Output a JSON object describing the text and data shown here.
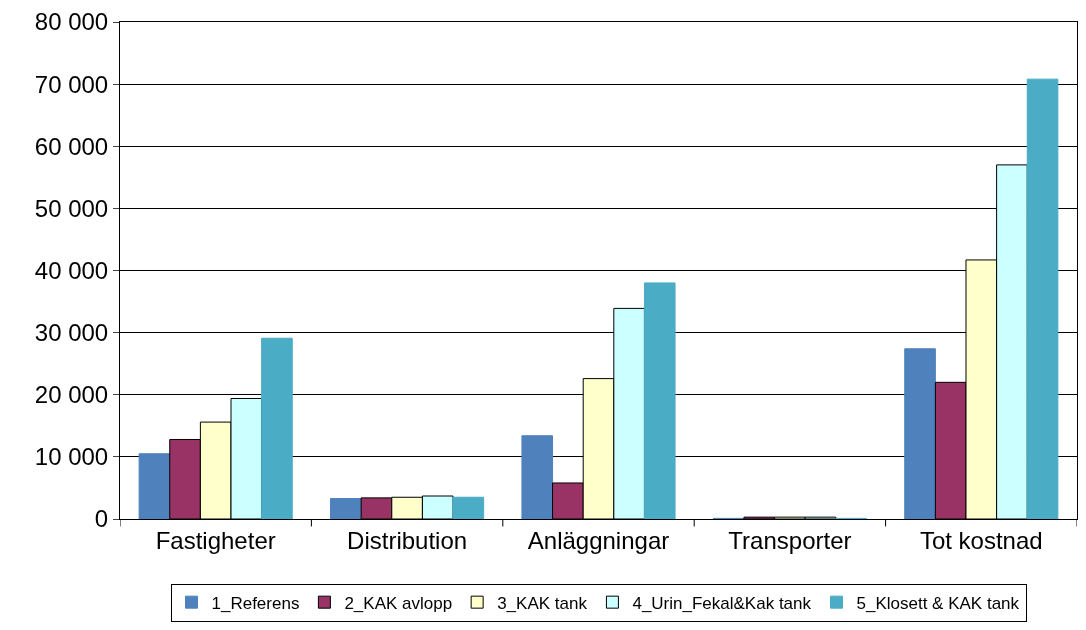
{
  "chart_data": {
    "type": "bar",
    "categories": [
      "Fastigheter",
      "Distribution",
      "Anläggningar",
      "Transporter",
      "Tot kostnad"
    ],
    "series": [
      {
        "name": "1_Referens",
        "color": "#4f81bd",
        "values": [
          10500,
          3300,
          13400,
          100,
          27400
        ]
      },
      {
        "name": "2_KAK avlopp",
        "color": "#993366",
        "values": [
          12800,
          3400,
          5800,
          300,
          22000
        ]
      },
      {
        "name": "3_KAK tank",
        "color": "#ffffcc",
        "values": [
          15600,
          3500,
          22600,
          300,
          41700
        ]
      },
      {
        "name": "4_Urin_Fekal&Kak tank",
        "color": "#ccffff",
        "values": [
          19400,
          3700,
          33900,
          300,
          57000
        ]
      },
      {
        "name": "5_Klosett & KAK tank",
        "color": "#4bacc6",
        "values": [
          29100,
          3500,
          38000,
          100,
          70800
        ]
      }
    ],
    "ylim": [
      0,
      80000
    ],
    "yticks": [
      {
        "value": 0,
        "label": "0"
      },
      {
        "value": 10000,
        "label": "10 000"
      },
      {
        "value": 20000,
        "label": "20 000"
      },
      {
        "value": 30000,
        "label": "30 000"
      },
      {
        "value": 40000,
        "label": "40 000"
      },
      {
        "value": 50000,
        "label": "50 000"
      },
      {
        "value": 60000,
        "label": "60 000"
      },
      {
        "value": 70000,
        "label": "70 000"
      },
      {
        "value": 80000,
        "label": "80 000"
      }
    ],
    "grid": "y",
    "legend": "bottom"
  }
}
